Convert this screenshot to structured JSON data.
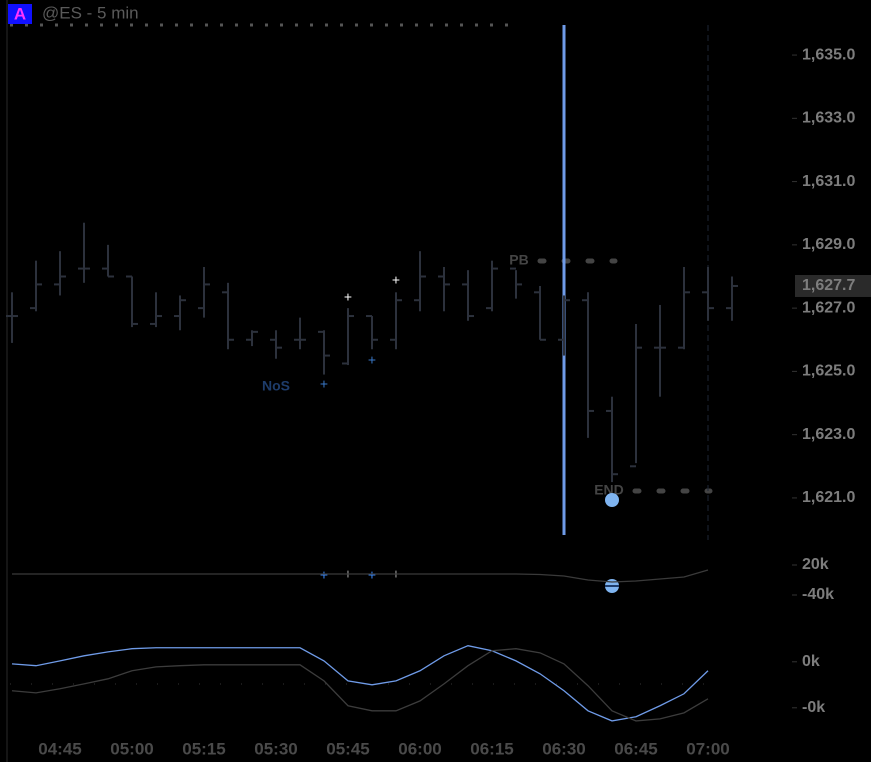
{
  "badge": "A",
  "title": "@ES - 5 min",
  "annotations": [
    "NoS",
    "PB",
    "END"
  ],
  "chart_data": [
    {
      "type": "ohlc",
      "color": "#2c313c",
      "ylim": [
        1619.67,
        1635.95
      ],
      "yticks": [
        {
          "value": 1621,
          "label": "1,621.0"
        },
        {
          "value": 1623,
          "label": "1,623.0"
        },
        {
          "value": 1625,
          "label": "1,625.0"
        },
        {
          "value": 1627,
          "label": "1,627.0"
        },
        {
          "value": 1629,
          "label": "1,629.0"
        },
        {
          "value": 1631,
          "label": "1,631.0"
        },
        {
          "value": 1633,
          "label": "1,633.0"
        },
        {
          "value": 1635,
          "label": "1,635.0"
        }
      ],
      "last_price": {
        "value": 1627.7,
        "label": "1,627.7"
      },
      "open": [
        1626.75,
        1627.0,
        1627.75,
        1628.25,
        1628.25,
        1628.0,
        1626.5,
        1626.75,
        1627.0,
        1627.5,
        1626.0,
        1626.0,
        1626.0,
        1626.25,
        1625.25,
        1626.75,
        1626.0,
        1627.25,
        1628.0,
        1627.75,
        1627.0,
        1628.25,
        1627.5,
        1626.0,
        1627.25,
        1623.75,
        1622.0,
        1625.75,
        1625.75,
        1627.5,
        1627.0
      ],
      "high": [
        1627.5,
        1628.5,
        1628.8,
        1629.7,
        1629.0,
        1628.0,
        1627.5,
        1627.4,
        1628.3,
        1627.8,
        1626.3,
        1626.3,
        1626.7,
        1626.3,
        1627.0,
        1626.75,
        1627.5,
        1628.8,
        1628.3,
        1628.2,
        1628.5,
        1628.2,
        1627.7,
        1627.4,
        1627.5,
        1624.2,
        1626.5,
        1627.1,
        1628.3,
        1628.3,
        1628.0
      ],
      "low": [
        1625.9,
        1626.9,
        1627.4,
        1627.8,
        1628.0,
        1626.4,
        1626.4,
        1626.3,
        1626.7,
        1625.7,
        1625.8,
        1625.4,
        1625.7,
        1624.9,
        1625.2,
        1625.7,
        1625.7,
        1626.9,
        1626.9,
        1626.6,
        1626.9,
        1627.3,
        1626.0,
        1625.5,
        1622.9,
        1621.5,
        1622.1,
        1624.2,
        1625.7,
        1626.6,
        1626.6
      ],
      "close": [
        1626.75,
        1627.75,
        1628.0,
        1628.25,
        1628.0,
        1626.5,
        1626.75,
        1627.25,
        1627.75,
        1626.0,
        1626.25,
        1625.75,
        1626.0,
        1625.5,
        1626.75,
        1626.0,
        1627.25,
        1628.0,
        1627.75,
        1626.75,
        1628.25,
        1627.75,
        1626.0,
        1627.25,
        1623.75,
        1621.75,
        1625.75,
        1625.75,
        1627.5,
        1627.0,
        1627.7
      ]
    },
    {
      "type": "line",
      "ylim": [
        -60,
        40
      ],
      "yticks": [
        {
          "value": 20,
          "label": "20k"
        },
        {
          "value": -40,
          "label": "-40k"
        }
      ],
      "series": [
        {
          "color": "#3a3a3a",
          "values": [
            2,
            2,
            2,
            2,
            2,
            2,
            2,
            2,
            2,
            2,
            2,
            2,
            2,
            2,
            2,
            2,
            2,
            2,
            2,
            2,
            2,
            2,
            1,
            -2,
            -10,
            -14,
            -12,
            -8,
            -4,
            10,
            null
          ]
        }
      ]
    },
    {
      "type": "line",
      "ylim": [
        -2.4,
        2.6
      ],
      "yticks": [
        {
          "value": 1,
          "label": "0k"
        },
        {
          "value": -1,
          "label": "-0k"
        }
      ],
      "categories": [
        null,
        null,
        "04:45",
        null,
        null,
        "05:00",
        null,
        null,
        "05:15",
        null,
        null,
        "05:30",
        null,
        null,
        "05:45",
        null,
        null,
        "06:00",
        null,
        null,
        "06:15",
        null,
        null,
        "06:30",
        null,
        null,
        "06:45",
        null,
        null,
        "07:00",
        null
      ],
      "series": [
        {
          "color": "#6f9be8",
          "values": [
            0.91,
            0.83,
            1.04,
            1.26,
            1.43,
            1.57,
            1.61,
            1.61,
            1.61,
            1.61,
            1.61,
            1.61,
            1.61,
            1.04,
            0.17,
            0,
            0.17,
            0.61,
            1.26,
            1.7,
            1.48,
            1.04,
            0.48,
            -0.26,
            -1.13,
            -1.57,
            -1.39,
            -0.91,
            -0.39,
            0.61,
            null
          ]
        },
        {
          "color": "#3c3c3c",
          "values": [
            -0.26,
            -0.35,
            -0.17,
            0.04,
            0.26,
            0.61,
            0.78,
            0.83,
            0.87,
            0.87,
            0.87,
            0.87,
            0.87,
            0.17,
            -0.91,
            -1.13,
            -1.13,
            -0.7,
            0.04,
            0.83,
            1.48,
            1.57,
            1.39,
            0.91,
            -0.04,
            -1.13,
            -1.57,
            -1.48,
            -1.22,
            -0.61,
            null
          ]
        }
      ]
    }
  ]
}
